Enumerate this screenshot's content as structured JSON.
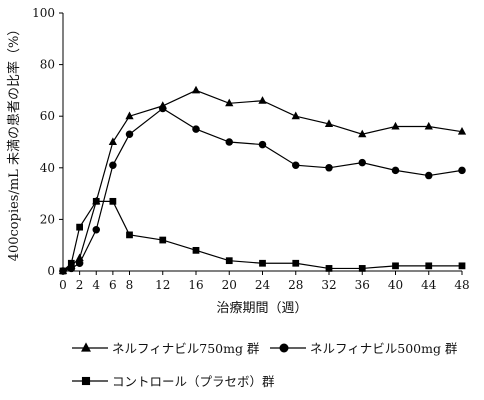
{
  "chart_data": {
    "type": "line",
    "xlabel": "治療期間（週）",
    "ylabel": "400copies/mL 未満の患者の比率（%）",
    "xlim": [
      0,
      48
    ],
    "ylim": [
      0,
      100
    ],
    "x_ticks": [
      0,
      2,
      4,
      6,
      8,
      12,
      16,
      20,
      24,
      28,
      32,
      36,
      40,
      44,
      48
    ],
    "y_ticks": [
      0,
      20,
      40,
      60,
      80,
      100
    ],
    "grid": false,
    "legend_position": "bottom",
    "series": [
      {
        "name": "ネルフィナビル750mg 群",
        "marker": "triangle",
        "x": [
          0,
          1,
          2,
          4,
          6,
          8,
          12,
          16,
          20,
          24,
          28,
          32,
          36,
          40,
          44,
          48
        ],
        "values": [
          0,
          2,
          5,
          27,
          50,
          60,
          64,
          70,
          65,
          66,
          60,
          57,
          53,
          56,
          56,
          54
        ]
      },
      {
        "name": "ネルフィナビル500mg 群",
        "marker": "circle",
        "x": [
          0,
          1,
          2,
          4,
          6,
          8,
          12,
          16,
          20,
          24,
          28,
          32,
          36,
          40,
          44,
          48
        ],
        "values": [
          0,
          1,
          3,
          16,
          41,
          53,
          63,
          55,
          50,
          49,
          41,
          40,
          42,
          39,
          37,
          39
        ]
      },
      {
        "name": "コントロール（プラセボ）群",
        "marker": "square",
        "x": [
          0,
          1,
          2,
          4,
          6,
          8,
          12,
          16,
          20,
          24,
          28,
          32,
          36,
          40,
          44,
          48
        ],
        "values": [
          0,
          3,
          17,
          27,
          27,
          14,
          12,
          8,
          4,
          3,
          3,
          1,
          1,
          2,
          2,
          2
        ]
      }
    ]
  }
}
